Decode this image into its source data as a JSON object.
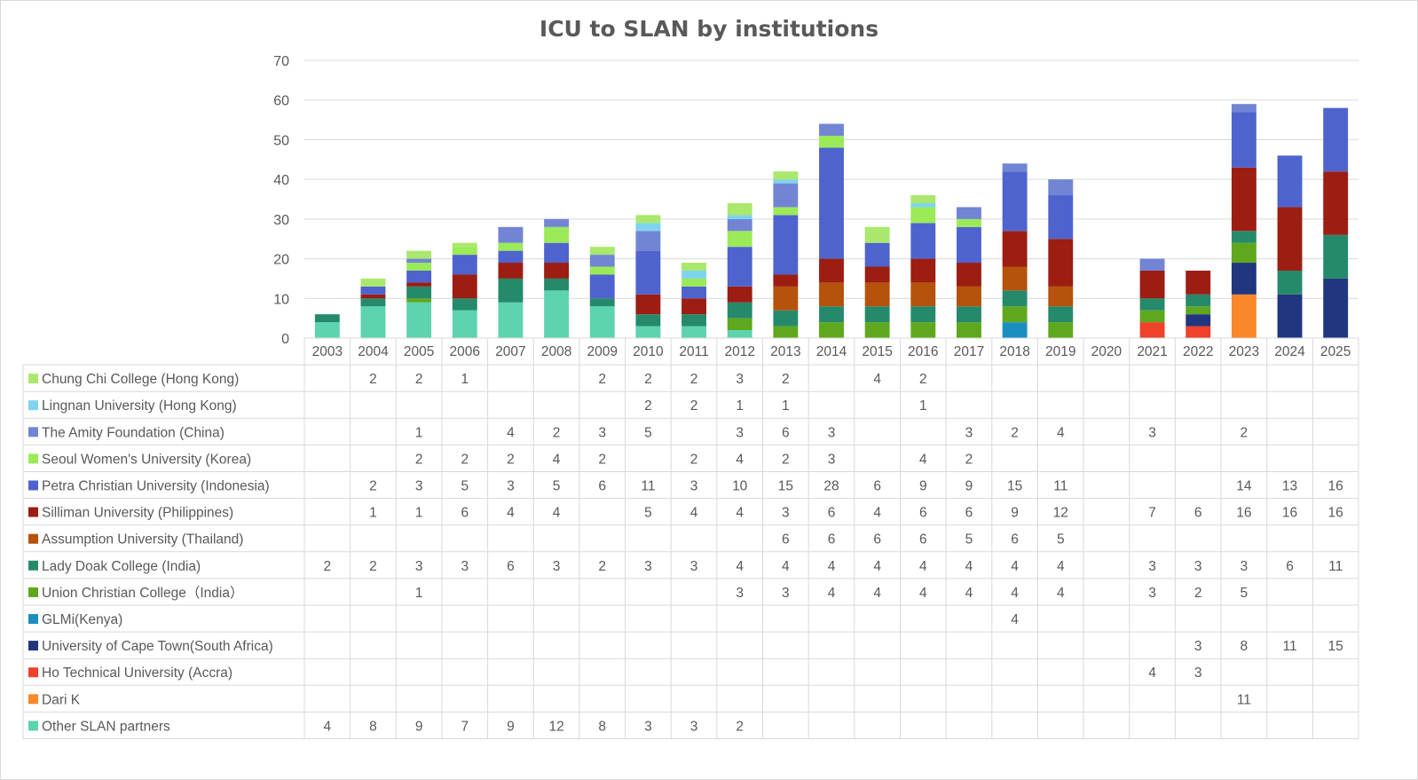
{
  "chart_data": {
    "type": "bar",
    "stacked": true,
    "title": "ICU to SLAN by institutions",
    "xlabel": "",
    "ylabel": "",
    "ylim": [
      0,
      70
    ],
    "yticks": [
      0,
      10,
      20,
      30,
      40,
      50,
      60,
      70
    ],
    "grid": true,
    "legend": "data-table",
    "categories": [
      "2003",
      "2004",
      "2005",
      "2006",
      "2007",
      "2008",
      "2009",
      "2010",
      "2011",
      "2012",
      "2013",
      "2014",
      "2015",
      "2016",
      "2017",
      "2018",
      "2019",
      "2020",
      "2021",
      "2022",
      "2023",
      "2024",
      "2025"
    ],
    "series": [
      {
        "name": "Chung Chi College (Hong Kong)",
        "color": "#a9e86c",
        "values": [
          null,
          2,
          2,
          1,
          null,
          null,
          2,
          2,
          2,
          3,
          2,
          null,
          4,
          2,
          null,
          null,
          null,
          null,
          null,
          null,
          null,
          null,
          null
        ]
      },
      {
        "name": "Lingnan University (Hong Kong)",
        "color": "#7fd3ef",
        "values": [
          null,
          null,
          null,
          null,
          null,
          null,
          null,
          2,
          2,
          1,
          1,
          null,
          null,
          1,
          null,
          null,
          null,
          null,
          null,
          null,
          null,
          null,
          null
        ]
      },
      {
        "name": "The Amity Foundation (China)",
        "color": "#7185d4",
        "values": [
          null,
          null,
          1,
          null,
          4,
          2,
          3,
          5,
          null,
          3,
          6,
          3,
          null,
          null,
          3,
          2,
          4,
          null,
          3,
          null,
          2,
          null,
          null
        ]
      },
      {
        "name": "Seoul Women's University (Korea)",
        "color": "#9bea58",
        "values": [
          null,
          null,
          2,
          2,
          2,
          4,
          2,
          null,
          2,
          4,
          2,
          3,
          null,
          4,
          2,
          null,
          null,
          null,
          null,
          null,
          null,
          null,
          null
        ]
      },
      {
        "name": "Petra Christian University (Indonesia)",
        "color": "#4f63ce",
        "values": [
          null,
          2,
          3,
          5,
          3,
          5,
          6,
          11,
          3,
          10,
          15,
          28,
          6,
          9,
          9,
          15,
          11,
          null,
          null,
          null,
          14,
          13,
          16
        ]
      },
      {
        "name": "Silliman University (Philippines)",
        "color": "#9c1d12",
        "values": [
          null,
          1,
          1,
          6,
          4,
          4,
          null,
          5,
          4,
          4,
          3,
          6,
          4,
          6,
          6,
          9,
          12,
          null,
          7,
          6,
          16,
          16,
          16
        ]
      },
      {
        "name": "Assumption University (Thailand)",
        "color": "#b5520c",
        "values": [
          null,
          null,
          null,
          null,
          null,
          null,
          null,
          null,
          null,
          null,
          6,
          6,
          6,
          6,
          5,
          6,
          5,
          null,
          null,
          null,
          null,
          null,
          null
        ]
      },
      {
        "name": "Lady Doak College (India)",
        "color": "#258a6c",
        "values": [
          2,
          2,
          3,
          3,
          6,
          3,
          2,
          3,
          3,
          4,
          4,
          4,
          4,
          4,
          4,
          4,
          4,
          null,
          3,
          3,
          3,
          6,
          11
        ]
      },
      {
        "name": "Union Christian College（India）",
        "color": "#5fa81d",
        "values": [
          null,
          null,
          1,
          null,
          null,
          null,
          null,
          null,
          null,
          3,
          3,
          4,
          4,
          4,
          4,
          4,
          4,
          null,
          3,
          2,
          5,
          null,
          null
        ]
      },
      {
        "name": "GLMi(Kenya)",
        "color": "#1a8fbf",
        "values": [
          null,
          null,
          null,
          null,
          null,
          null,
          null,
          null,
          null,
          null,
          null,
          null,
          null,
          null,
          null,
          4,
          null,
          null,
          null,
          null,
          null,
          null,
          null
        ]
      },
      {
        "name": "University of Cape Town(South Africa)",
        "color": "#22357f",
        "values": [
          null,
          null,
          null,
          null,
          null,
          null,
          null,
          null,
          null,
          null,
          null,
          null,
          null,
          null,
          null,
          null,
          null,
          null,
          null,
          3,
          8,
          11,
          15
        ]
      },
      {
        "name": "Ho Technical University (Accra)",
        "color": "#f0412b",
        "values": [
          null,
          null,
          null,
          null,
          null,
          null,
          null,
          null,
          null,
          null,
          null,
          null,
          null,
          null,
          null,
          null,
          null,
          null,
          4,
          3,
          null,
          null,
          null
        ]
      },
      {
        "name": "Dari K",
        "color": "#f9882a",
        "values": [
          null,
          null,
          null,
          null,
          null,
          null,
          null,
          null,
          null,
          null,
          null,
          null,
          null,
          null,
          null,
          null,
          null,
          null,
          null,
          null,
          11,
          null,
          null
        ]
      },
      {
        "name": "Other SLAN partners",
        "color": "#5dd3b0",
        "values": [
          4,
          8,
          9,
          7,
          9,
          12,
          8,
          3,
          3,
          2,
          null,
          null,
          null,
          null,
          null,
          null,
          null,
          null,
          null,
          null,
          null,
          null,
          null
        ]
      }
    ]
  }
}
